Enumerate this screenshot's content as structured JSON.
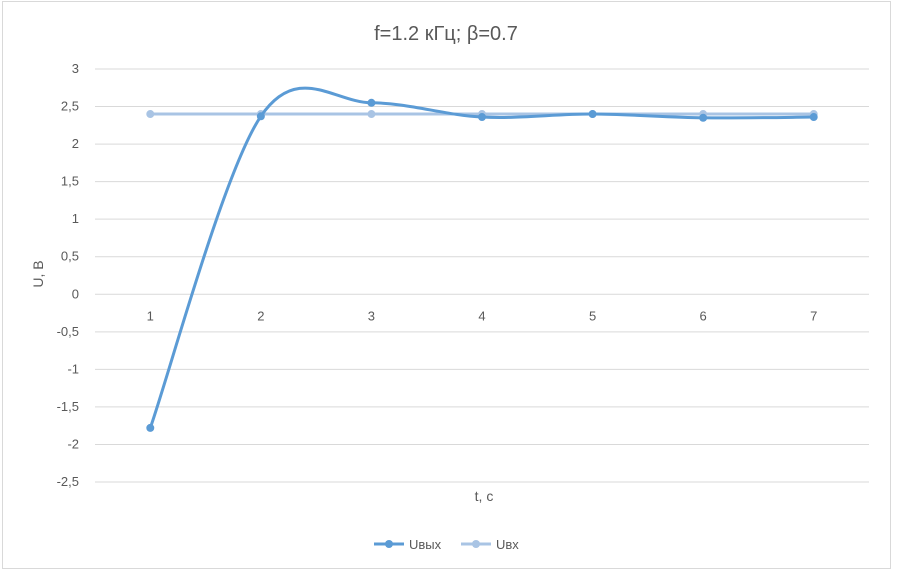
{
  "chart_data": {
    "type": "line",
    "title": "f=1.2 кГц; β=0.7",
    "xlabel": "t, c",
    "ylabel": "U, B",
    "categories": [
      "1",
      "2",
      "3",
      "4",
      "5",
      "6",
      "7"
    ],
    "ylim": [
      -2.5,
      3
    ],
    "yticks": [
      3,
      2.5,
      2,
      1.5,
      1,
      0.5,
      0,
      -0.5,
      -1,
      -1.5,
      -2,
      -2.5
    ],
    "ytick_labels": [
      "3",
      "2,5",
      "2",
      "1,5",
      "1",
      "0,5",
      "0",
      "-0,5",
      "-1",
      "-1,5",
      "-2",
      "-2,5"
    ],
    "grid": true,
    "smooth": true,
    "legend": "bottom",
    "series": [
      {
        "name": "Uвых",
        "color": "#5b9bd5",
        "values": [
          -1.78,
          2.37,
          2.55,
          2.36,
          2.4,
          2.35,
          2.36
        ]
      },
      {
        "name": "Uвх",
        "color": "#a9c4e4",
        "values": [
          2.4,
          2.4,
          2.4,
          2.4,
          2.4,
          2.4,
          2.4
        ]
      }
    ]
  }
}
